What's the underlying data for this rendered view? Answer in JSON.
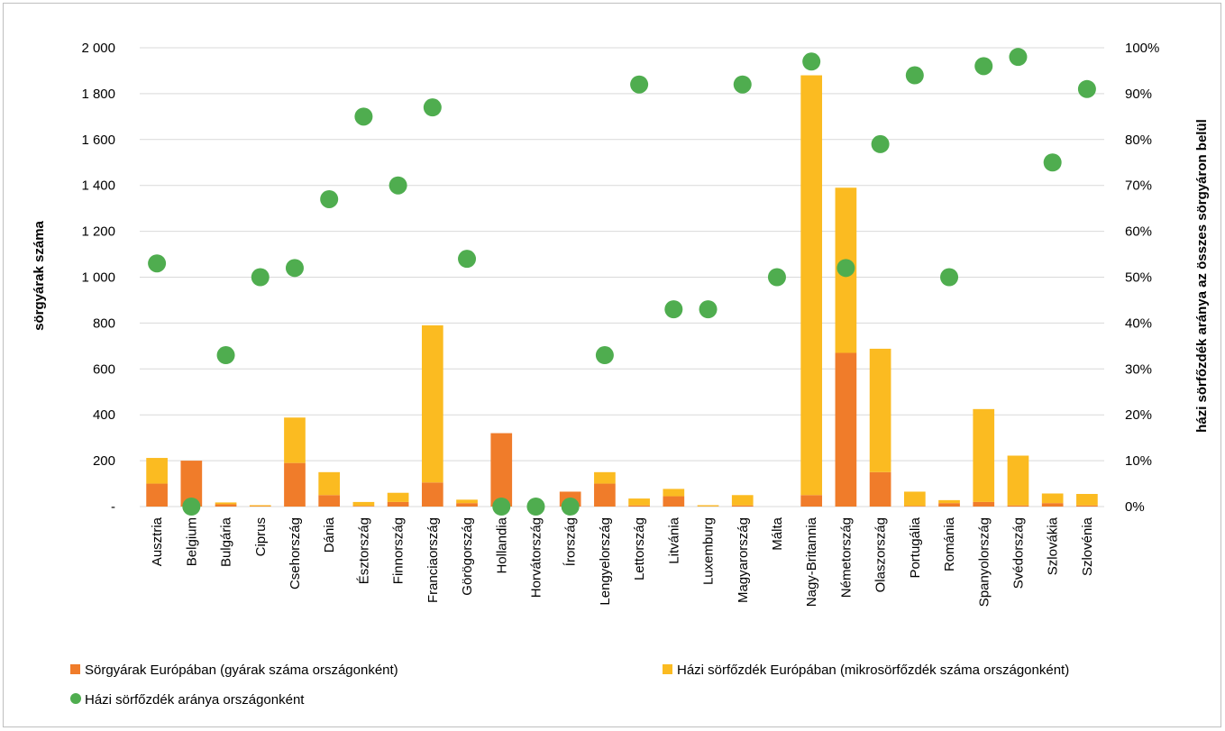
{
  "chart_data": {
    "type": "bar",
    "stacked": true,
    "categories": [
      "Ausztria",
      "Belgium",
      "Bulgária",
      "Ciprus",
      "Csehország",
      "Dánia",
      "Észtország",
      "Finnország",
      "Franciaország",
      "Görögország",
      "Hollandia",
      "Horvátország",
      "Írország",
      "Lengyelország",
      "Lettország",
      "Litvánia",
      "Luxemburg",
      "Magyarország",
      "Málta",
      "Nagy-Britannia",
      "Németország",
      "Olaszország",
      "Portugália",
      "Románia",
      "Spanyolország",
      "Svédország",
      "Szlovákia",
      "Szlovénia"
    ],
    "series": [
      {
        "name": "Sörgyárak Európában (gyárak száma országonként)",
        "axis": "left",
        "type": "bar",
        "color": "#f07c2a",
        "values": [
          100,
          200,
          10,
          2,
          190,
          50,
          3,
          20,
          105,
          15,
          320,
          0,
          65,
          100,
          5,
          45,
          1,
          5,
          0,
          50,
          670,
          150,
          3,
          15,
          20,
          5,
          15,
          5
        ]
      },
      {
        "name": "Házi sörfőzdék Európában (mikrosörfőzdék száma országonként)",
        "axis": "left",
        "type": "bar",
        "color": "#fbbb21",
        "values": [
          112,
          0,
          8,
          4,
          198,
          100,
          17,
          40,
          685,
          15,
          0,
          0,
          0,
          50,
          30,
          32,
          5,
          45,
          0,
          1830,
          720,
          538,
          62,
          13,
          405,
          217,
          42,
          50
        ]
      },
      {
        "name": "Házi sörfőzdék aránya országonként",
        "axis": "right",
        "type": "scatter",
        "color": "#4fad4f",
        "values": [
          53,
          0,
          33,
          50,
          52,
          67,
          85,
          70,
          87,
          54,
          0,
          0,
          0,
          33,
          92,
          43,
          43,
          92,
          50,
          97,
          52,
          79,
          94,
          50,
          96,
          98,
          75,
          91
        ]
      }
    ],
    "y_left": {
      "label": "sörgyárak száma",
      "ylim": [
        0,
        2000
      ],
      "ticks": [
        0,
        200,
        400,
        600,
        800,
        1000,
        1200,
        1400,
        1600,
        1800,
        2000
      ],
      "tick_labels": [
        "-",
        "200",
        "400",
        "600",
        "800",
        "1 000",
        "1 200",
        "1 400",
        "1 600",
        "1 800",
        "2 000"
      ]
    },
    "y_right": {
      "label": "házi sörfőzdék aránya az összes sörgyáron belül",
      "ylim": [
        0,
        100
      ],
      "ticks": [
        0,
        10,
        20,
        30,
        40,
        50,
        60,
        70,
        80,
        90,
        100
      ],
      "tick_labels": [
        "0%",
        "10%",
        "20%",
        "30%",
        "40%",
        "50%",
        "60%",
        "70%",
        "80%",
        "90%",
        "100%"
      ]
    },
    "grid": true,
    "legend_position": "bottom"
  }
}
